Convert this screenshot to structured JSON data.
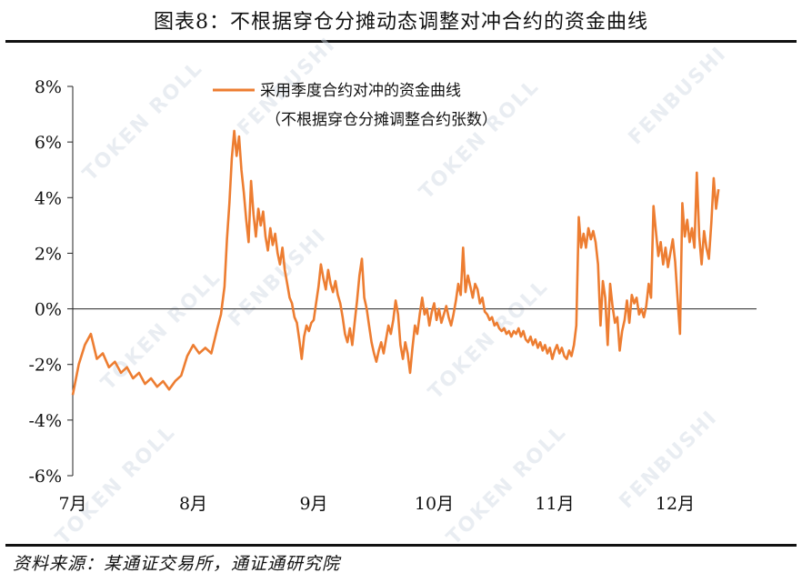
{
  "title": "图表8：不根据穿仓分摊动态调整对冲合约的资金曲线",
  "source": "资料来源：某通证交易所，通证通研究院",
  "watermarks": [
    "TOKEN ROLL",
    "FENBUSHI"
  ],
  "colors": {
    "line": "#ED7D31",
    "axis": "#222222"
  },
  "chart_data": {
    "type": "line",
    "title": "",
    "xlabel": "",
    "ylabel": "",
    "ylim": [
      -6,
      8
    ],
    "y_ticks": [
      "-6%",
      "-4%",
      "-2%",
      "0%",
      "2%",
      "4%",
      "6%",
      "8%"
    ],
    "x_ticks": [
      "7月",
      "8月",
      "9月",
      "10月",
      "11月",
      "12月"
    ],
    "legend": {
      "position": "top-center",
      "line1": "采用季度合约对冲的资金曲线",
      "line2": "（不根据穿仓分摊调整合约张数）"
    },
    "x_unit": "month index (0 = start of 7月)",
    "series": [
      {
        "name": "采用季度合约对冲的资金曲线（不根据穿仓分摊调整合约张数）",
        "points": [
          [
            0.0,
            -3.1
          ],
          [
            0.05,
            -2.0
          ],
          [
            0.1,
            -1.3
          ],
          [
            0.15,
            -0.9
          ],
          [
            0.2,
            -1.8
          ],
          [
            0.25,
            -1.6
          ],
          [
            0.3,
            -2.1
          ],
          [
            0.35,
            -1.9
          ],
          [
            0.4,
            -2.3
          ],
          [
            0.45,
            -2.1
          ],
          [
            0.5,
            -2.5
          ],
          [
            0.55,
            -2.3
          ],
          [
            0.6,
            -2.7
          ],
          [
            0.65,
            -2.5
          ],
          [
            0.7,
            -2.8
          ],
          [
            0.75,
            -2.6
          ],
          [
            0.8,
            -2.9
          ],
          [
            0.85,
            -2.6
          ],
          [
            0.9,
            -2.4
          ],
          [
            0.95,
            -1.7
          ],
          [
            1.0,
            -1.3
          ],
          [
            1.05,
            -1.6
          ],
          [
            1.1,
            -1.4
          ],
          [
            1.15,
            -1.6
          ],
          [
            1.2,
            -0.7
          ],
          [
            1.23,
            -0.2
          ],
          [
            1.26,
            0.8
          ],
          [
            1.28,
            2.5
          ],
          [
            1.3,
            3.8
          ],
          [
            1.32,
            5.4
          ],
          [
            1.34,
            6.4
          ],
          [
            1.36,
            5.5
          ],
          [
            1.38,
            6.2
          ],
          [
            1.4,
            5.0
          ],
          [
            1.42,
            4.2
          ],
          [
            1.44,
            3.2
          ],
          [
            1.46,
            2.4
          ],
          [
            1.48,
            4.6
          ],
          [
            1.5,
            3.4
          ],
          [
            1.52,
            2.6
          ],
          [
            1.54,
            3.6
          ],
          [
            1.56,
            3.0
          ],
          [
            1.58,
            3.5
          ],
          [
            1.6,
            2.6
          ],
          [
            1.62,
            2.1
          ],
          [
            1.64,
            2.9
          ],
          [
            1.66,
            2.3
          ],
          [
            1.68,
            2.7
          ],
          [
            1.7,
            2.0
          ],
          [
            1.72,
            1.6
          ],
          [
            1.74,
            2.2
          ],
          [
            1.76,
            1.4
          ],
          [
            1.78,
            0.9
          ],
          [
            1.8,
            0.4
          ],
          [
            1.82,
            0.2
          ],
          [
            1.84,
            -0.3
          ],
          [
            1.86,
            -0.5
          ],
          [
            1.88,
            -1.1
          ],
          [
            1.9,
            -1.8
          ],
          [
            1.92,
            -1.0
          ],
          [
            1.94,
            -0.6
          ],
          [
            1.96,
            -0.8
          ],
          [
            1.98,
            -0.5
          ],
          [
            2.0,
            -0.4
          ],
          [
            2.02,
            0.2
          ],
          [
            2.04,
            0.8
          ],
          [
            2.06,
            1.6
          ],
          [
            2.08,
            1.1
          ],
          [
            2.1,
            0.7
          ],
          [
            2.12,
            1.4
          ],
          [
            2.14,
            0.9
          ],
          [
            2.16,
            0.6
          ],
          [
            2.18,
            1.0
          ],
          [
            2.2,
            0.5
          ],
          [
            2.22,
            0.2
          ],
          [
            2.24,
            -0.3
          ],
          [
            2.26,
            -0.9
          ],
          [
            2.28,
            -1.2
          ],
          [
            2.3,
            -0.7
          ],
          [
            2.32,
            -1.3
          ],
          [
            2.34,
            -0.5
          ],
          [
            2.36,
            0.3
          ],
          [
            2.38,
            1.2
          ],
          [
            2.4,
            1.8
          ],
          [
            2.42,
            0.4
          ],
          [
            2.44,
            0.0
          ],
          [
            2.46,
            -0.6
          ],
          [
            2.48,
            -1.2
          ],
          [
            2.5,
            -1.6
          ],
          [
            2.52,
            -1.9
          ],
          [
            2.54,
            -1.5
          ],
          [
            2.56,
            -1.2
          ],
          [
            2.58,
            -1.6
          ],
          [
            2.6,
            -1.1
          ],
          [
            2.62,
            -0.6
          ],
          [
            2.64,
            -0.9
          ],
          [
            2.66,
            -0.4
          ],
          [
            2.68,
            0.3
          ],
          [
            2.7,
            -0.2
          ],
          [
            2.72,
            -1.3
          ],
          [
            2.74,
            -1.8
          ],
          [
            2.76,
            -1.2
          ],
          [
            2.78,
            -1.6
          ],
          [
            2.8,
            -2.3
          ],
          [
            2.82,
            -1.4
          ],
          [
            2.84,
            -0.6
          ],
          [
            2.86,
            -0.9
          ],
          [
            2.88,
            -0.2
          ],
          [
            2.9,
            0.4
          ],
          [
            2.92,
            -0.2
          ],
          [
            2.94,
            0.0
          ],
          [
            2.96,
            -0.6
          ],
          [
            2.98,
            -0.1
          ],
          [
            3.0,
            0.2
          ],
          [
            3.02,
            -0.4
          ],
          [
            3.04,
            0.0
          ],
          [
            3.06,
            -0.5
          ],
          [
            3.08,
            -0.2
          ],
          [
            3.1,
            0.1
          ],
          [
            3.12,
            -0.3
          ],
          [
            3.14,
            -0.6
          ],
          [
            3.16,
            -0.2
          ],
          [
            3.18,
            0.3
          ],
          [
            3.2,
            0.9
          ],
          [
            3.22,
            0.5
          ],
          [
            3.24,
            2.2
          ],
          [
            3.26,
            0.6
          ],
          [
            3.28,
            1.2
          ],
          [
            3.3,
            0.8
          ],
          [
            3.32,
            0.4
          ],
          [
            3.34,
            0.9
          ],
          [
            3.36,
            0.7
          ],
          [
            3.38,
            0.2
          ],
          [
            3.4,
            0.4
          ],
          [
            3.42,
            -0.1
          ],
          [
            3.44,
            -0.2
          ],
          [
            3.46,
            -0.4
          ],
          [
            3.48,
            -0.3
          ],
          [
            3.5,
            -0.6
          ],
          [
            3.52,
            -0.5
          ],
          [
            3.54,
            -0.7
          ],
          [
            3.56,
            -0.8
          ],
          [
            3.58,
            -0.7
          ],
          [
            3.6,
            -0.9
          ],
          [
            3.62,
            -0.8
          ],
          [
            3.64,
            -1.0
          ],
          [
            3.66,
            -0.8
          ],
          [
            3.68,
            -0.9
          ],
          [
            3.7,
            -0.7
          ],
          [
            3.72,
            -1.0
          ],
          [
            3.74,
            -0.8
          ],
          [
            3.76,
            -1.1
          ],
          [
            3.78,
            -1.2
          ],
          [
            3.8,
            -1.0
          ],
          [
            3.82,
            -1.3
          ],
          [
            3.84,
            -1.1
          ],
          [
            3.86,
            -1.4
          ],
          [
            3.88,
            -1.2
          ],
          [
            3.9,
            -1.5
          ],
          [
            3.92,
            -1.3
          ],
          [
            3.94,
            -1.6
          ],
          [
            3.96,
            -1.4
          ],
          [
            3.98,
            -1.8
          ],
          [
            4.0,
            -1.5
          ],
          [
            4.02,
            -1.3
          ],
          [
            4.04,
            -1.6
          ],
          [
            4.06,
            -1.4
          ],
          [
            4.08,
            -1.7
          ],
          [
            4.1,
            -1.8
          ],
          [
            4.12,
            -1.5
          ],
          [
            4.14,
            -1.7
          ],
          [
            4.16,
            -1.3
          ],
          [
            4.18,
            -0.6
          ],
          [
            4.2,
            3.3
          ],
          [
            4.22,
            2.2
          ],
          [
            4.24,
            2.7
          ],
          [
            4.26,
            2.2
          ],
          [
            4.28,
            2.9
          ],
          [
            4.3,
            2.5
          ],
          [
            4.32,
            2.8
          ],
          [
            4.34,
            2.4
          ],
          [
            4.36,
            1.6
          ],
          [
            4.38,
            -0.6
          ],
          [
            4.4,
            1.0
          ],
          [
            4.42,
            0.4
          ],
          [
            4.44,
            -1.3
          ],
          [
            4.46,
            0.9
          ],
          [
            4.48,
            0.1
          ],
          [
            4.5,
            -0.5
          ],
          [
            4.52,
            -0.3
          ],
          [
            4.54,
            -1.5
          ],
          [
            4.56,
            -0.8
          ],
          [
            4.58,
            -0.4
          ],
          [
            4.6,
            0.3
          ],
          [
            4.62,
            -0.5
          ],
          [
            4.64,
            0.5
          ],
          [
            4.66,
            0.2
          ],
          [
            4.68,
            0.4
          ],
          [
            4.7,
            -0.2
          ],
          [
            4.72,
            0.0
          ],
          [
            4.74,
            -0.3
          ],
          [
            4.76,
            0.1
          ],
          [
            4.78,
            0.9
          ],
          [
            4.8,
            0.4
          ],
          [
            4.82,
            3.7
          ],
          [
            4.84,
            2.8
          ],
          [
            4.86,
            1.9
          ],
          [
            4.88,
            2.4
          ],
          [
            4.9,
            1.6
          ],
          [
            4.92,
            2.2
          ],
          [
            4.94,
            1.5
          ],
          [
            4.96,
            2.0
          ],
          [
            4.98,
            2.5
          ],
          [
            5.0,
            1.7
          ],
          [
            5.02,
            0.4
          ],
          [
            5.04,
            -0.9
          ],
          [
            5.06,
            3.8
          ],
          [
            5.08,
            2.6
          ],
          [
            5.1,
            3.2
          ],
          [
            5.12,
            2.4
          ],
          [
            5.14,
            2.9
          ],
          [
            5.16,
            2.2
          ],
          [
            5.18,
            4.9
          ],
          [
            5.2,
            2.6
          ],
          [
            5.22,
            1.6
          ],
          [
            5.24,
            2.8
          ],
          [
            5.26,
            2.2
          ],
          [
            5.28,
            1.8
          ],
          [
            5.3,
            3.1
          ],
          [
            5.32,
            4.7
          ],
          [
            5.34,
            3.6
          ],
          [
            5.36,
            4.3
          ]
        ]
      }
    ]
  }
}
